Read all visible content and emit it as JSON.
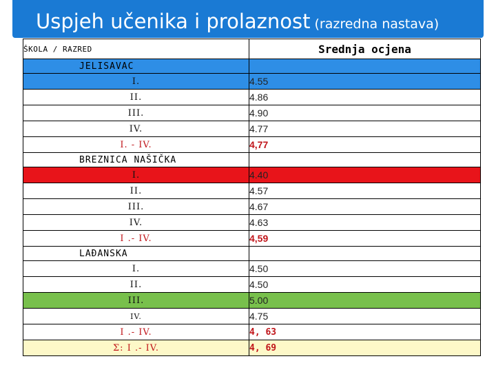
{
  "title": {
    "main": "Uspjeh učenika i prolaznost",
    "sub": "(razredna nastava)"
  },
  "table": {
    "col1_header": "ŠKOLA / RAZRED",
    "col2_header": "Srednja ocjena",
    "schools": [
      {
        "name": "JELISAVAC",
        "rows": [
          {
            "label": "I.",
            "value": "4.55"
          },
          {
            "label": "II.",
            "value": "4.86"
          },
          {
            "label": "III.",
            "value": "4.90"
          },
          {
            "label": "IV.",
            "value": "4.77"
          }
        ],
        "total": {
          "label": "I. - IV.",
          "value": "4,77"
        }
      },
      {
        "name": "BREZNICA NAŠIČKA",
        "rows": [
          {
            "label": "I.",
            "value": "4.40"
          },
          {
            "label": "II.",
            "value": "4.57"
          },
          {
            "label": "III.",
            "value": "4.67"
          },
          {
            "label": "IV.",
            "value": "4.63"
          }
        ],
        "total": {
          "label": "I .- IV.",
          "value": "4,59"
        }
      },
      {
        "name": "LAĐANSKA",
        "rows": [
          {
            "label": "I.",
            "value": "4.50"
          },
          {
            "label": "II.",
            "value": "4.50"
          },
          {
            "label": "III.",
            "value": "5.00"
          },
          {
            "label": "IV.",
            "value": "4.75"
          }
        ],
        "total": {
          "label": "I .- IV.",
          "value": "4, 63"
        }
      }
    ],
    "grand_total": {
      "label": "Σ: I .- IV.",
      "value": "4, 69"
    }
  },
  "colors": {
    "header_bar": "#1a7ad4",
    "blue_row": "#2e8ee6",
    "red_row": "#e8141a",
    "green_row": "#78c04c",
    "yellow_row": "#fdf8c8",
    "total_text": "#c0151a"
  }
}
